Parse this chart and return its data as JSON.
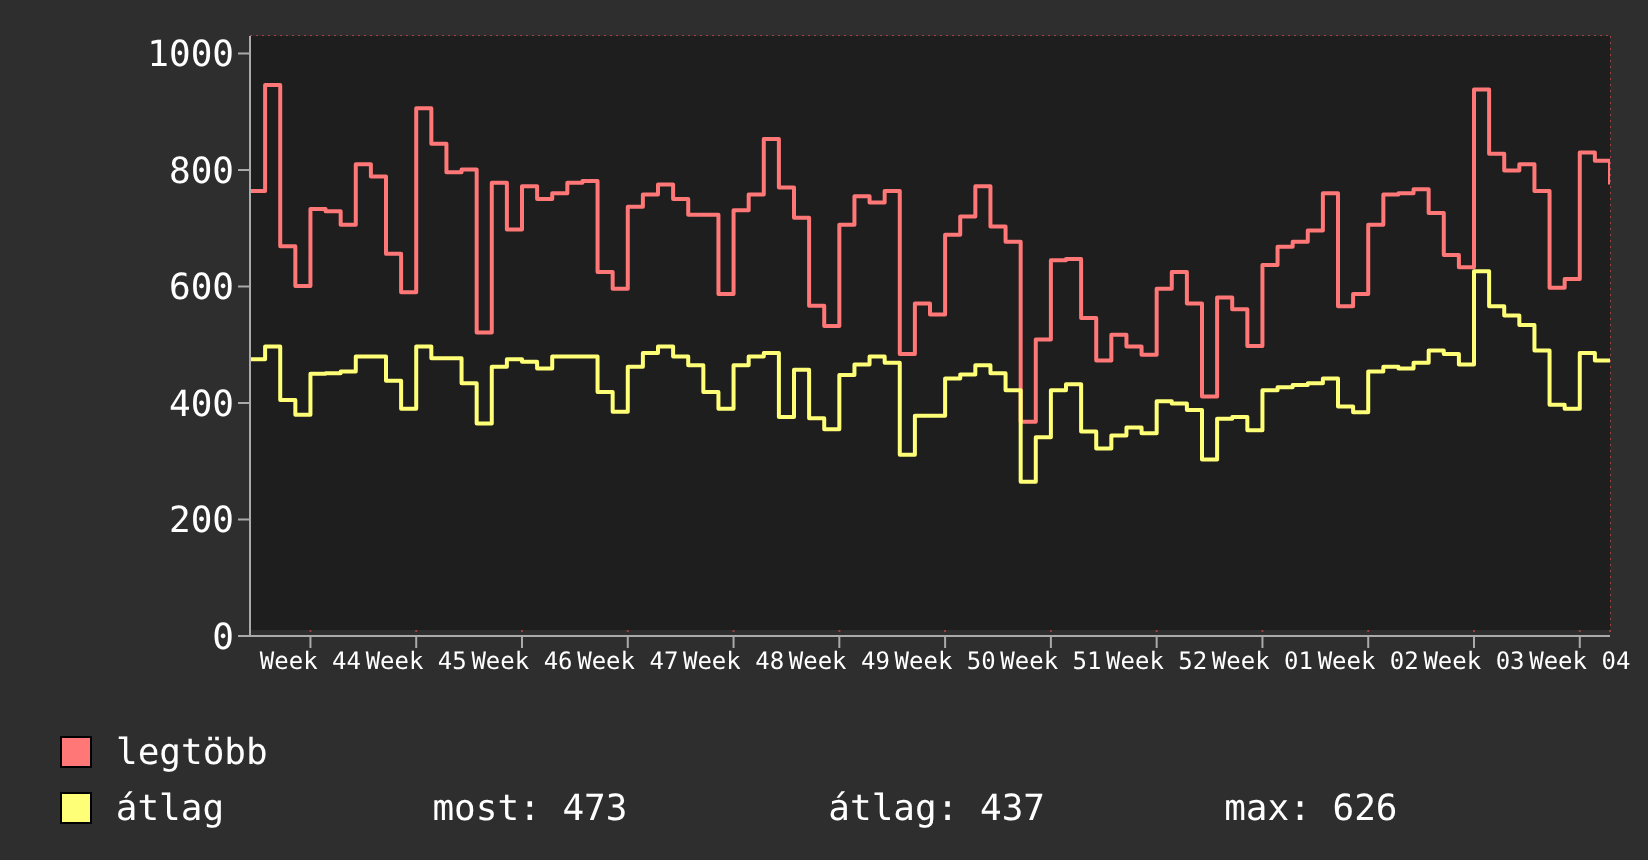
{
  "chart_data": {
    "type": "step",
    "categories": [
      null,
      null,
      null,
      null,
      "Week 44",
      null,
      null,
      null,
      null,
      null,
      null,
      "Week 45",
      null,
      null,
      null,
      null,
      null,
      null,
      "Week 46",
      null,
      null,
      null,
      null,
      null,
      null,
      "Week 47",
      null,
      null,
      null,
      null,
      null,
      null,
      "Week 48",
      null,
      null,
      null,
      null,
      null,
      null,
      "Week 49",
      null,
      null,
      null,
      null,
      null,
      null,
      "Week 50",
      null,
      null,
      null,
      null,
      null,
      null,
      "Week 51",
      null,
      null,
      null,
      null,
      null,
      null,
      "Week 52",
      null,
      null,
      null,
      null,
      null,
      null,
      "Week 01",
      null,
      null,
      null,
      null,
      null,
      null,
      "Week 02",
      null,
      null,
      null,
      null,
      null,
      null,
      "Week 03",
      null,
      null,
      null,
      null,
      null,
      null,
      "Week 04",
      null,
      null
    ],
    "series": [
      {
        "name": "legtöbb",
        "color": "#ff7777",
        "values": [
          764,
          946,
          669,
          601,
          733,
          729,
          706,
          810,
          789,
          656,
          590,
          906,
          845,
          796,
          801,
          521,
          778,
          698,
          772,
          750,
          760,
          778,
          781,
          625,
          596,
          737,
          758,
          775,
          750,
          723,
          723,
          587,
          731,
          758,
          853,
          770,
          718,
          567,
          532,
          706,
          755,
          744,
          764,
          484,
          571,
          552,
          689,
          720,
          772,
          703,
          677,
          368,
          509,
          645,
          647,
          546,
          473,
          517,
          497,
          483,
          596,
          625,
          571,
          411,
          581,
          561,
          498,
          637,
          668,
          677,
          696,
          760,
          566,
          587,
          706,
          758,
          760,
          767,
          726,
          654,
          633,
          938,
          828,
          799,
          810,
          764,
          598,
          613,
          830,
          816,
          775
        ]
      },
      {
        "name": "átlag",
        "color": "#ffff77",
        "values": [
          475,
          497,
          405,
          380,
          450,
          451,
          454,
          480,
          480,
          438,
          390,
          497,
          477,
          477,
          434,
          365,
          462,
          475,
          471,
          459,
          480,
          480,
          480,
          419,
          385,
          462,
          486,
          497,
          480,
          465,
          419,
          390,
          465,
          480,
          486,
          376,
          457,
          374,
          355,
          448,
          466,
          480,
          469,
          311,
          378,
          378,
          442,
          449,
          465,
          451,
          422,
          265,
          341,
          422,
          432,
          351,
          322,
          344,
          358,
          348,
          403,
          399,
          388,
          303,
          373,
          376,
          353,
          422,
          427,
          431,
          434,
          442,
          394,
          384,
          454,
          462,
          459,
          469,
          490,
          484,
          466,
          626,
          566,
          550,
          534,
          490,
          397,
          390,
          486,
          473,
          473
        ]
      }
    ],
    "ylim": [
      0,
      1030
    ],
    "yticks": [
      0,
      200,
      400,
      600,
      800,
      1000
    ],
    "grid": true,
    "legend": "bottom left",
    "line_style": "solid",
    "annotations": [
      "most: 473",
      "átlag: 437",
      "max: 626"
    ]
  }
}
